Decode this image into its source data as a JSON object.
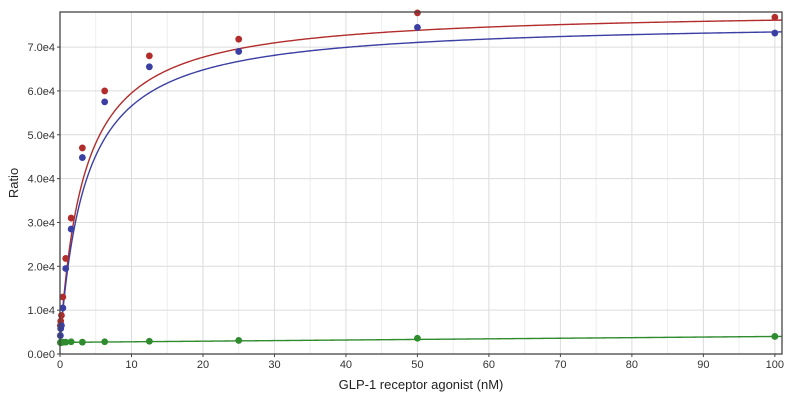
{
  "chart_data": {
    "type": "scatter",
    "xlabel": "GLP-1 receptor agonist (nM)",
    "ylabel": "Ratio",
    "xlim": [
      0,
      101
    ],
    "ylim": [
      0,
      78000
    ],
    "xticks": [
      0,
      10,
      20,
      30,
      40,
      50,
      60,
      70,
      80,
      90,
      100
    ],
    "xtick_labels": [
      "0",
      "10",
      "20",
      "30",
      "40",
      "50",
      "60",
      "70",
      "80",
      "90",
      "100"
    ],
    "yticks": [
      0,
      10000,
      20000,
      30000,
      40000,
      50000,
      60000,
      70000
    ],
    "ytick_labels": [
      "0.0e0",
      "1.0e4",
      "2.0e4",
      "3.0e4",
      "4.0e4",
      "5.0e4",
      "6.0e4",
      "7.0e4"
    ],
    "grid": true,
    "legend": "none",
    "series": [
      {
        "color": "#b22c2c",
        "x": [
          0.05,
          0.1,
          0.2,
          0.4,
          0.8,
          1.56,
          3.13,
          6.25,
          12.5,
          25,
          50,
          100
        ],
        "y": [
          6500,
          7500,
          8800,
          13000,
          21800,
          31000,
          47000,
          60000,
          68000,
          71800,
          77800,
          76800
        ],
        "fit": {
          "model": "hyperbolic",
          "bottom": 2500,
          "top": 78600,
          "ec50": 3.35
        }
      },
      {
        "color": "#3b3fa3",
        "x": [
          0.05,
          0.1,
          0.2,
          0.4,
          0.8,
          1.56,
          3.13,
          6.25,
          12.5,
          25,
          50,
          100
        ],
        "y": [
          4200,
          5800,
          6500,
          10500,
          19500,
          28500,
          44800,
          57500,
          65500,
          69000,
          74500,
          73200
        ],
        "fit": {
          "model": "hyperbolic",
          "bottom": 2500,
          "top": 76000,
          "ec50": 3.6
        }
      },
      {
        "color": "#2e8b2e",
        "x": [
          0.05,
          0.1,
          0.2,
          0.4,
          0.8,
          1.56,
          3.13,
          6.25,
          12.5,
          25,
          50,
          100
        ],
        "y": [
          2600,
          2700,
          2600,
          2700,
          2700,
          2800,
          2700,
          2800,
          2900,
          3100,
          3600,
          4000
        ],
        "fit": {
          "model": "linear",
          "intercept": 2650,
          "slope": 13.5
        }
      }
    ]
  }
}
